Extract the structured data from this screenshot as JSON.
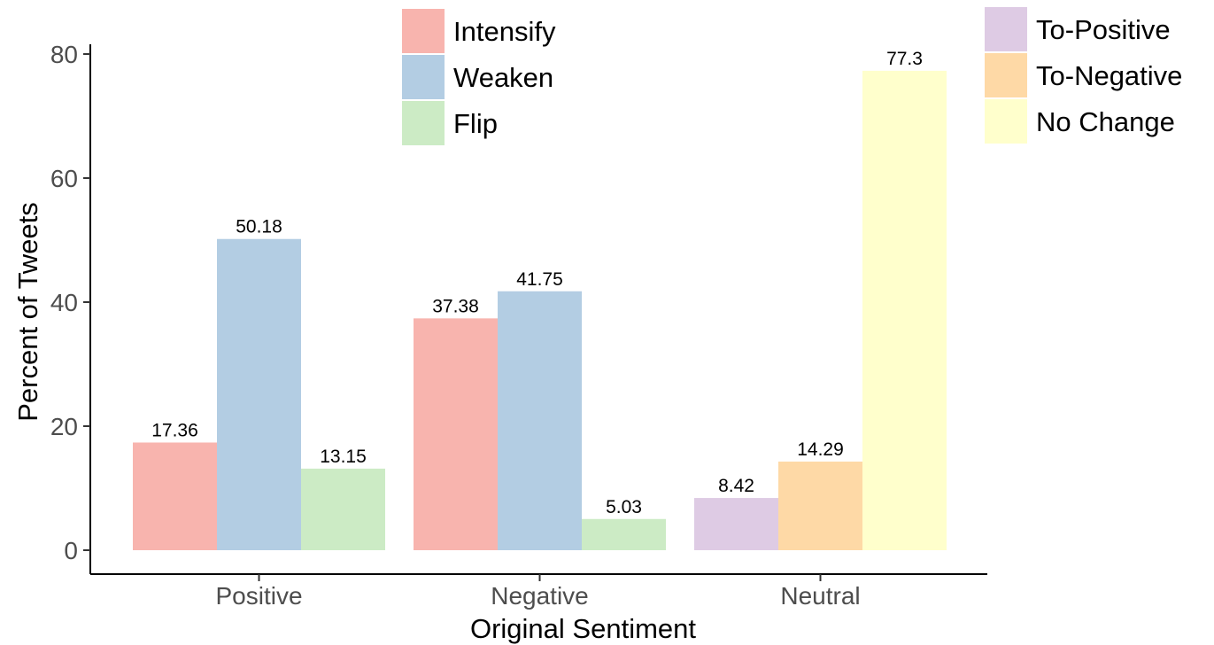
{
  "chart_data": {
    "type": "bar",
    "xlabel": "Original Sentiment",
    "ylabel": "Percent of Tweets",
    "ylim": [
      0,
      80
    ],
    "yticks": [
      0,
      20,
      40,
      60,
      80
    ],
    "grid": false,
    "categories": [
      "Positive",
      "Negative",
      "Neutral"
    ],
    "groups": [
      {
        "category": "Positive",
        "bars": [
          {
            "series": "Intensify",
            "value": 17.36,
            "label": "17.36"
          },
          {
            "series": "Weaken",
            "value": 50.18,
            "label": "50.18"
          },
          {
            "series": "Flip",
            "value": 13.15,
            "label": "13.15"
          }
        ]
      },
      {
        "category": "Negative",
        "bars": [
          {
            "series": "Intensify",
            "value": 37.38,
            "label": "37.38"
          },
          {
            "series": "Weaken",
            "value": 41.75,
            "label": "41.75"
          },
          {
            "series": "Flip",
            "value": 5.03,
            "label": "5.03"
          }
        ]
      },
      {
        "category": "Neutral",
        "bars": [
          {
            "series": "To-Positive",
            "value": 8.42,
            "label": "8.42"
          },
          {
            "series": "To-Negative",
            "value": 14.29,
            "label": "14.29"
          },
          {
            "series": "No Change",
            "value": 77.3,
            "label": "77.3"
          }
        ]
      }
    ],
    "legends": [
      {
        "placement": "top-center",
        "entries": [
          {
            "name": "Intensify",
            "color": "#f8b4ae"
          },
          {
            "name": "Weaken",
            "color": "#b3cde3"
          },
          {
            "name": "Flip",
            "color": "#ccebc5"
          }
        ]
      },
      {
        "placement": "top-right",
        "entries": [
          {
            "name": "To-Positive",
            "color": "#decbe4"
          },
          {
            "name": "To-Negative",
            "color": "#fed9a6"
          },
          {
            "name": "No Change",
            "color": "#ffffcc"
          }
        ]
      }
    ]
  }
}
